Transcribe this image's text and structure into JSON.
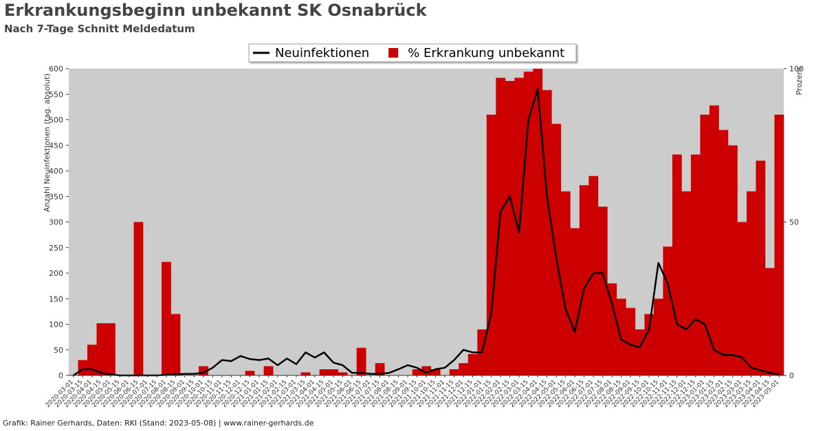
{
  "chart_data": {
    "type": "line",
    "title": "Erkrankungsbeginn unbekannt SK Osnabrück",
    "subtitle": "Nach 7-Tage Schnitt Meldedatum",
    "y_label": "Anzahl Neuinfektionen (tag. absolut)",
    "y2_label": "Prozent",
    "footer": "Grafik: Rainer Gerhards, Daten: RKI (Stand: 2023-05-08) | www.rainer-gerhards.de",
    "categories": [
      "2020-03-01",
      "2020-03-15",
      "2020-04-01",
      "2020-04-15",
      "2020-05-01",
      "2020-05-15",
      "2020-06-01",
      "2020-06-15",
      "2020-07-01",
      "2020-07-15",
      "2020-08-01",
      "2020-08-15",
      "2020-09-01",
      "2020-09-15",
      "2020-10-01",
      "2020-10-15",
      "2020-11-01",
      "2020-11-15",
      "2020-12-01",
      "2020-12-15",
      "2021-01-01",
      "2021-01-15",
      "2021-02-01",
      "2021-02-15",
      "2021-03-01",
      "2021-03-15",
      "2021-04-01",
      "2021-04-15",
      "2021-05-01",
      "2021-05-15",
      "2021-06-01",
      "2021-06-15",
      "2021-07-01",
      "2021-07-15",
      "2021-08-01",
      "2021-08-15",
      "2021-09-01",
      "2021-09-15",
      "2021-10-01",
      "2021-10-15",
      "2021-11-01",
      "2021-11-15",
      "2021-12-01",
      "2021-12-15",
      "2022-01-01",
      "2022-01-15",
      "2022-02-01",
      "2022-02-15",
      "2022-03-01",
      "2022-03-15",
      "2022-04-01",
      "2022-04-15",
      "2022-05-01",
      "2022-05-15",
      "2022-06-01",
      "2022-06-15",
      "2022-07-01",
      "2022-07-15",
      "2022-08-01",
      "2022-08-15",
      "2022-09-01",
      "2022-09-15",
      "2022-10-01",
      "2022-10-15",
      "2022-11-01",
      "2022-11-15",
      "2022-12-01",
      "2022-12-15",
      "2023-01-01",
      "2023-01-15",
      "2023-02-01",
      "2023-02-15",
      "2023-03-01",
      "2023-03-15",
      "2023-04-01",
      "2023-04-15",
      "2023-05-01"
    ],
    "series": [
      {
        "name": "Neuinfektionen",
        "color": "#000000",
        "type": "line",
        "values": [
          0,
          12,
          12,
          5,
          2,
          0,
          0,
          0,
          0,
          0,
          1,
          2,
          3,
          3,
          5,
          15,
          30,
          28,
          38,
          32,
          30,
          33,
          20,
          33,
          22,
          45,
          35,
          45,
          25,
          20,
          5,
          5,
          3,
          3,
          5,
          12,
          20,
          15,
          5,
          12,
          15,
          30,
          50,
          45,
          45,
          120,
          320,
          350,
          280,
          500,
          560,
          350,
          230,
          130,
          85,
          170,
          200,
          200,
          140,
          70,
          60,
          55,
          90,
          220,
          180,
          100,
          90,
          110,
          100,
          50,
          40,
          40,
          35,
          15,
          10,
          5,
          2
        ]
      },
      {
        "name": "% Erkrankung unbekannt",
        "color": "#cc0000",
        "type": "bar",
        "axis": "y2",
        "values": [
          0,
          5,
          10,
          17,
          17,
          0,
          0,
          50,
          0,
          0,
          37,
          20,
          0,
          0,
          3,
          0,
          0,
          0,
          0,
          1.5,
          0,
          3,
          0,
          0,
          0,
          1,
          0,
          2,
          2,
          1,
          0,
          9,
          0,
          4,
          0,
          0,
          0,
          2,
          3,
          2,
          0,
          2,
          4,
          7,
          15,
          85,
          97,
          96,
          97,
          99,
          100,
          93,
          82,
          60,
          48,
          62,
          65,
          55,
          30,
          25,
          22,
          15,
          20,
          25,
          42,
          72,
          60,
          72,
          85,
          88,
          80,
          75,
          50,
          60,
          70,
          35,
          85
        ]
      }
    ],
    "ylim": [
      0,
      600
    ],
    "yticks": [
      0,
      50,
      100,
      150,
      200,
      250,
      300,
      350,
      400,
      450,
      500,
      550,
      600
    ],
    "y2lim": [
      0,
      100
    ],
    "y2ticks": [
      0,
      50,
      100
    ],
    "legend": "top"
  }
}
